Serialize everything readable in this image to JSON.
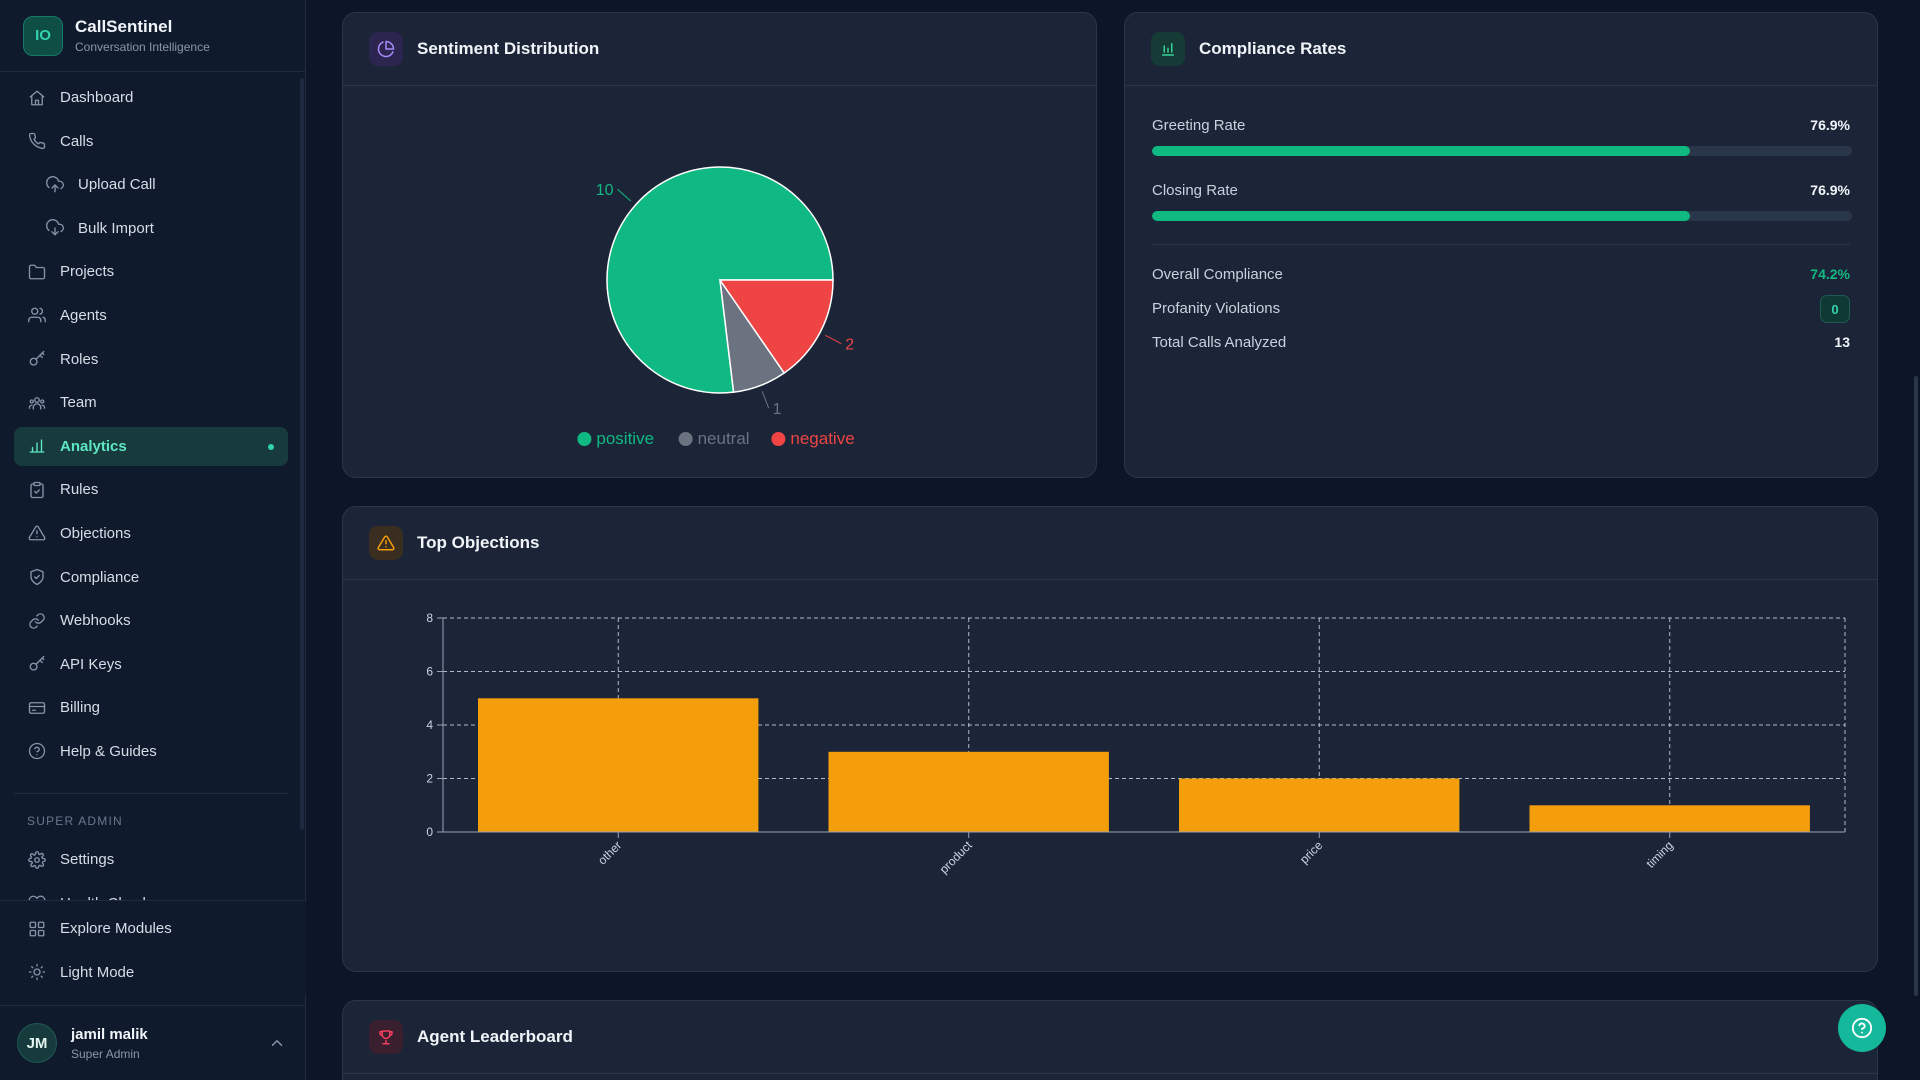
{
  "brand": {
    "logo": "IO",
    "name": "CallSentinel",
    "subtitle": "Conversation Intelligence"
  },
  "nav": [
    {
      "label": "Dashboard",
      "icon": "home-icon"
    },
    {
      "label": "Calls",
      "icon": "phone-icon"
    },
    {
      "label": "Upload Call",
      "icon": "cloud-upload-icon",
      "sub": true
    },
    {
      "label": "Bulk Import",
      "icon": "cloud-download-icon",
      "sub": true
    },
    {
      "label": "Projects",
      "icon": "folder-icon"
    },
    {
      "label": "Agents",
      "icon": "users-icon"
    },
    {
      "label": "Roles",
      "icon": "key-icon"
    },
    {
      "label": "Team",
      "icon": "team-icon"
    },
    {
      "label": "Analytics",
      "icon": "bar-chart-icon",
      "active": true
    },
    {
      "label": "Rules",
      "icon": "clipboard-icon"
    },
    {
      "label": "Objections",
      "icon": "warning-icon"
    },
    {
      "label": "Compliance",
      "icon": "shield-icon"
    },
    {
      "label": "Webhooks",
      "icon": "link-icon"
    },
    {
      "label": "API Keys",
      "icon": "key-icon"
    },
    {
      "label": "Billing",
      "icon": "credit-card-icon"
    },
    {
      "label": "Help & Guides",
      "icon": "help-circle-icon"
    }
  ],
  "admin_section": {
    "label": "SUPER ADMIN",
    "items": [
      {
        "label": "Settings",
        "icon": "gear-icon"
      },
      {
        "label": "Health Check",
        "icon": "heart-icon"
      }
    ]
  },
  "bottom_nav": [
    {
      "label": "Explore Modules",
      "icon": "grid-icon"
    },
    {
      "label": "Light Mode",
      "icon": "sun-icon"
    }
  ],
  "user": {
    "initials": "JM",
    "name": "jamil malik",
    "role": "Super Admin"
  },
  "sentiment": {
    "title": "Sentiment Distribution",
    "chart_data": {
      "type": "pie",
      "slices": [
        {
          "label": "positive",
          "value": 10,
          "color": "#10b981"
        },
        {
          "label": "neutral",
          "value": 1,
          "color": "#6b7280"
        },
        {
          "label": "negative",
          "value": 2,
          "color": "#ef4444"
        }
      ],
      "legend": "bottom"
    }
  },
  "compliance": {
    "title": "Compliance Rates",
    "bars": [
      {
        "label": "Greeting Rate",
        "value": "76.9%",
        "fraction": 0.769
      },
      {
        "label": "Closing Rate",
        "value": "76.9%",
        "fraction": 0.769
      }
    ],
    "stats": {
      "overall_label": "Overall Compliance",
      "overall_value": "74.2%",
      "profanity_label": "Profanity Violations",
      "profanity_value": "0",
      "total_label": "Total Calls Analyzed",
      "total_value": "13"
    }
  },
  "objections": {
    "title": "Top Objections",
    "chart_data": {
      "type": "bar",
      "categories": [
        "other",
        "product",
        "price",
        "timing"
      ],
      "values": [
        5,
        3,
        2,
        1
      ],
      "ylim": [
        0,
        8
      ],
      "yticks": [
        0,
        2,
        4,
        6,
        8
      ],
      "color": "#f59e0b",
      "grid": true
    }
  },
  "leaderboard": {
    "title": "Agent Leaderboard"
  }
}
